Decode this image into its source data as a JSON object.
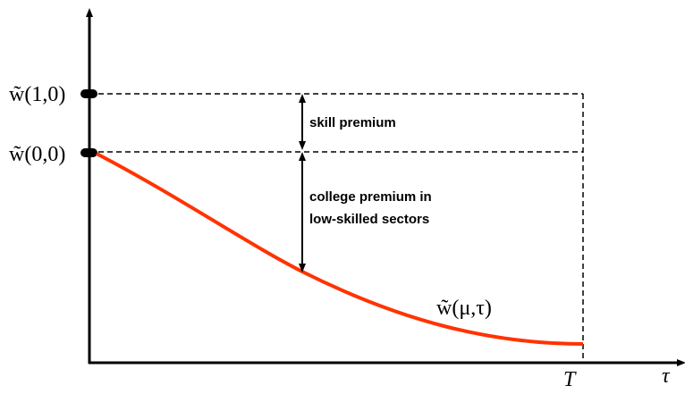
{
  "labels": {
    "w_high": "w̃(1,0)",
    "w_low": "w̃(0,0)",
    "curve": "w̃(μ,τ)",
    "x_end": "T",
    "x_axis": "τ"
  },
  "annotations": {
    "skill_premium": "skill premium",
    "college_premium_line1": "college premium in",
    "college_premium_line2": "low-skilled sectors"
  }
}
